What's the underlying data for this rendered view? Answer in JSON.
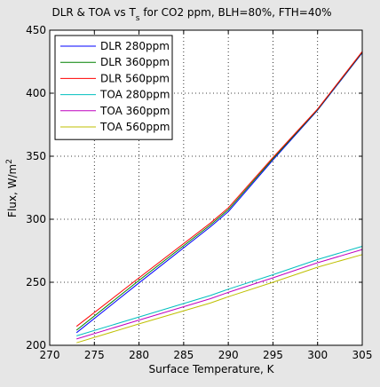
{
  "chart_data": {
    "type": "line",
    "title_main": "DLR & TOA vs T",
    "title_sub": "s",
    "title_rest": " for CO2 ppm, BLH=80%, FTH=40%",
    "xlabel": "Surface Temperature, K",
    "ylabel_main": "Flux, W/m",
    "ylabel_sup": "2",
    "xlim": [
      270,
      305
    ],
    "ylim": [
      200,
      450
    ],
    "xticks": [
      270,
      275,
      280,
      285,
      290,
      295,
      300,
      305
    ],
    "yticks": [
      200,
      250,
      300,
      350,
      400,
      450
    ],
    "grid": true,
    "grid_style": "dotted",
    "legend_position": "top-left",
    "series": [
      {
        "name": "DLR 280ppm",
        "color": "#0000ff",
        "x": [
          273,
          280,
          288,
          290,
          295,
          300,
          305
        ],
        "y": [
          210,
          249.5,
          294,
          306,
          347,
          386.5,
          432
        ]
      },
      {
        "name": "DLR 360ppm",
        "color": "#008000",
        "x": [
          273,
          280,
          288,
          290,
          295,
          300,
          305
        ],
        "y": [
          212,
          251.5,
          295.5,
          307.5,
          348,
          387,
          432.5
        ]
      },
      {
        "name": "DLR 560ppm",
        "color": "#ff0000",
        "x": [
          273,
          280,
          288,
          290,
          295,
          300,
          305
        ],
        "y": [
          215,
          253.5,
          297,
          309,
          349,
          387.5,
          433
        ]
      },
      {
        "name": "TOA 280ppm",
        "color": "#00bfbf",
        "x": [
          273,
          280,
          288,
          290,
          295,
          300,
          305
        ],
        "y": [
          207.5,
          222.5,
          239.5,
          244.5,
          256,
          268,
          278.5
        ]
      },
      {
        "name": "TOA 360ppm",
        "color": "#bf00bf",
        "x": [
          273,
          280,
          288,
          290,
          295,
          300,
          305
        ],
        "y": [
          205,
          220,
          237,
          242,
          253.5,
          265.5,
          276
        ]
      },
      {
        "name": "TOA 560ppm",
        "color": "#bfbf00",
        "x": [
          273,
          280,
          288,
          290,
          295,
          300,
          305
        ],
        "y": [
          202,
          217,
          233.5,
          238.5,
          250,
          262,
          272
        ]
      }
    ]
  }
}
